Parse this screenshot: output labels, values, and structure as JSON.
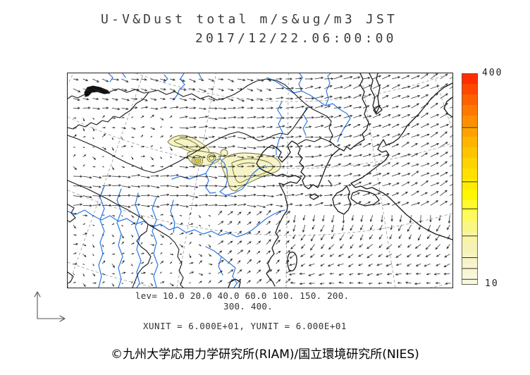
{
  "title": {
    "line1": "U-V&Dust total m/s&ug/m3 JST",
    "line2": "2017/12/22.06:00:00"
  },
  "legend": {
    "lev_line1": "lev= 10.0 20.0 40.0 60.0 100. 150. 200.",
    "lev_line2": "300. 400.",
    "units": "XUNIT = 6.000E+01, YUNIT = 6.000E+01"
  },
  "colorbar": {
    "max_label": "400",
    "min_label": "10",
    "range": [
      10,
      400
    ],
    "levels": [
      10,
      20,
      40,
      60,
      100,
      150,
      200,
      300,
      400
    ],
    "colors_top_to_bottom": [
      "#ff2e00",
      "#ff4700",
      "#ff6000",
      "#ff7800",
      "#ff8e00",
      "#ffa200",
      "#ffb400",
      "#ffc400",
      "#ffd300",
      "#ffe000",
      "#ffec00",
      "#fff600",
      "#fffb2e",
      "#fdf960",
      "#faf686",
      "#f8f4a2",
      "#f6f2b6",
      "#f6f3c4",
      "#f8f5d0",
      "#faf8dc"
    ]
  },
  "map_styles": {
    "river_color": "#2b78e4",
    "coast_color": "#1a1a1a",
    "graticule_color": "#9a9a9a",
    "dust_fill": "#f6f3c8",
    "dust_contour": "#6e6e28",
    "dust_core_fill": "#ffe133",
    "dust_core_dot": "#ffab00",
    "arrow_color": "#2a2a2a"
  },
  "footer": {
    "attribution": "©九州大学応用力学研究所(RIAM)/国立環境研究所(NIES)"
  }
}
